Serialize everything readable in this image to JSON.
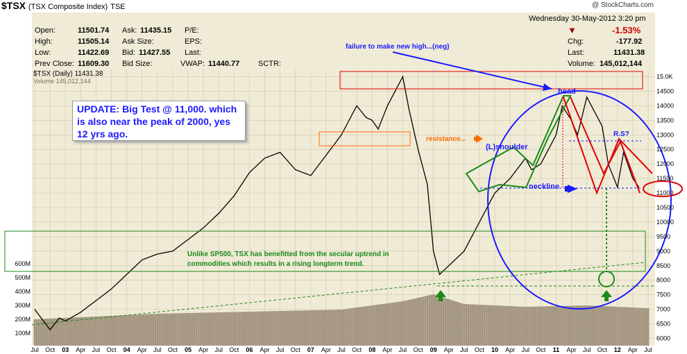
{
  "header": {
    "symbol": "$TSX",
    "name": "(TSX Composite Index)",
    "exchange": "TSE",
    "credit": "@ StockCharts.com"
  },
  "quote": {
    "open_label": "Open:",
    "open": "11501.74",
    "high_label": "High:",
    "high": "11505.14",
    "low_label": "Low:",
    "low": "11422.69",
    "prev_label": "Prev Close:",
    "prev": "11609.30",
    "ask_label": "Ask:",
    "ask": "11435.15",
    "asksize_label": "Ask Size:",
    "bid_label": "Bid:",
    "bid": "11427.55",
    "bidsize_label": "Bid Size:",
    "pe_label": "P/E:",
    "eps_label": "EPS:",
    "last_label_mid": "Last:",
    "vwap_label": "VWAP:",
    "vwap": "11440.77",
    "sctr_label": "SCTR:",
    "date": "Wednesday   30-May-2012  3:20 pm",
    "pct_change": "-1.53%",
    "chg_label": "Chg:",
    "chg": "-177.92",
    "last_label": "Last:",
    "last": "11431.38",
    "volume_label": "Volume:",
    "volume": "145,012,144"
  },
  "legend": {
    "price": "$TSX (Daily) 11431.38",
    "volume": "Volume 145,012,144"
  },
  "annotations": {
    "update": "UPDATE: Big Test @ 11,000. which is also near the peak of 2000, yes 12 yrs ago.",
    "failure": "failure to make new high...(neg)",
    "resistance": "resistance...",
    "lshoulder": "(L)shoulder",
    "head": "head",
    "rs": "R.S?",
    "neckline": "neckline",
    "note_line1": "Unlike SP500, TSX has benefitted from the secular uptrend in",
    "note_line2": "commodities which results in a rising longterm trend."
  },
  "colors": {
    "panel_bg": "#f0ebd6",
    "price": "#000000",
    "volume": "#a39580",
    "blue": "#1a1aff",
    "green": "#1a8a1a",
    "red": "#e00000",
    "orange": "#ff6a00",
    "down": "#cc0000"
  },
  "chart_data": {
    "type": "line",
    "title": "$TSX (Daily) 11431.38",
    "y_axis_ticks": [
      "15.0K",
      "14500",
      "14000",
      "13500",
      "13000",
      "12500",
      "12000",
      "11500",
      "11000",
      "10500",
      "10000",
      "9500",
      "9000",
      "8500",
      "8000",
      "7500",
      "7000",
      "6500",
      "6000"
    ],
    "ylim": [
      5750,
      15250
    ],
    "volume_ticks": [
      "600M",
      "500M",
      "400M",
      "300M",
      "200M",
      "100M"
    ],
    "x_axis_ticks": [
      "Jul",
      "Oct",
      "03",
      "Apr",
      "Jul",
      "Oct",
      "04",
      "Apr",
      "Jul",
      "Oct",
      "05",
      "Apr",
      "Jul",
      "Oct",
      "06",
      "Apr",
      "Jul",
      "Oct",
      "07",
      "Apr",
      "Jul",
      "Oct",
      "08",
      "Apr",
      "Jul",
      "Oct",
      "09",
      "Apr",
      "Jul",
      "Oct",
      "10",
      "Apr",
      "Jul",
      "Oct",
      "11",
      "Apr",
      "Jul",
      "Oct",
      "12",
      "Apr",
      "Jul"
    ],
    "x_tick_t": [
      0.0,
      0.25,
      0.5,
      0.75,
      1.0,
      1.25,
      1.5,
      1.75,
      2.0,
      2.25,
      2.5,
      2.75,
      3.0,
      3.25,
      3.5,
      3.75,
      4.0,
      4.25,
      4.5,
      4.75,
      5.0,
      5.25,
      5.5,
      5.75,
      6.0,
      6.25,
      6.5,
      6.75,
      7.0,
      7.25,
      7.5,
      7.75,
      8.0,
      8.25,
      8.5,
      8.75,
      9.0,
      9.25,
      9.5,
      9.75,
      10.0
    ],
    "series": [
      {
        "name": "$TSX (Daily) 11431.38",
        "x": [
          0.0,
          0.25,
          0.4,
          0.5,
          0.75,
          1.0,
          1.25,
          1.5,
          1.75,
          2.0,
          2.25,
          2.5,
          2.75,
          3.0,
          3.25,
          3.5,
          3.75,
          4.0,
          4.25,
          4.5,
          4.75,
          5.0,
          5.1,
          5.25,
          5.4,
          5.5,
          5.6,
          5.75,
          5.9,
          6.0,
          6.1,
          6.25,
          6.4,
          6.5,
          6.6,
          6.75,
          7.0,
          7.25,
          7.5,
          7.75,
          8.0,
          8.1,
          8.25,
          8.5,
          8.6,
          8.75,
          8.85,
          9.0,
          9.25,
          9.35,
          9.5,
          9.6,
          9.75,
          9.85
        ],
        "y": [
          7000,
          6300,
          6700,
          6600,
          6900,
          7300,
          7700,
          8200,
          8700,
          8900,
          9000,
          9400,
          9800,
          10300,
          10900,
          11700,
          12200,
          12400,
          11800,
          11600,
          12300,
          13000,
          13400,
          14000,
          13600,
          13500,
          13200,
          14000,
          14600,
          15000,
          13900,
          12500,
          11300,
          9000,
          8200,
          8500,
          9000,
          10000,
          11000,
          11500,
          12200,
          11800,
          12000,
          13000,
          14000,
          13500,
          13000,
          14300,
          13300,
          12000,
          11200,
          12400,
          11500,
          11200
        ]
      },
      {
        "name": "Volume 145,012,144",
        "x": [
          0.0,
          1.0,
          2.0,
          3.0,
          4.0,
          5.0,
          6.0,
          6.5,
          7.0,
          8.0,
          9.0,
          10.0
        ],
        "y": [
          150,
          170,
          190,
          200,
          210,
          220,
          280,
          330,
          260,
          240,
          250,
          230
        ]
      }
    ]
  }
}
